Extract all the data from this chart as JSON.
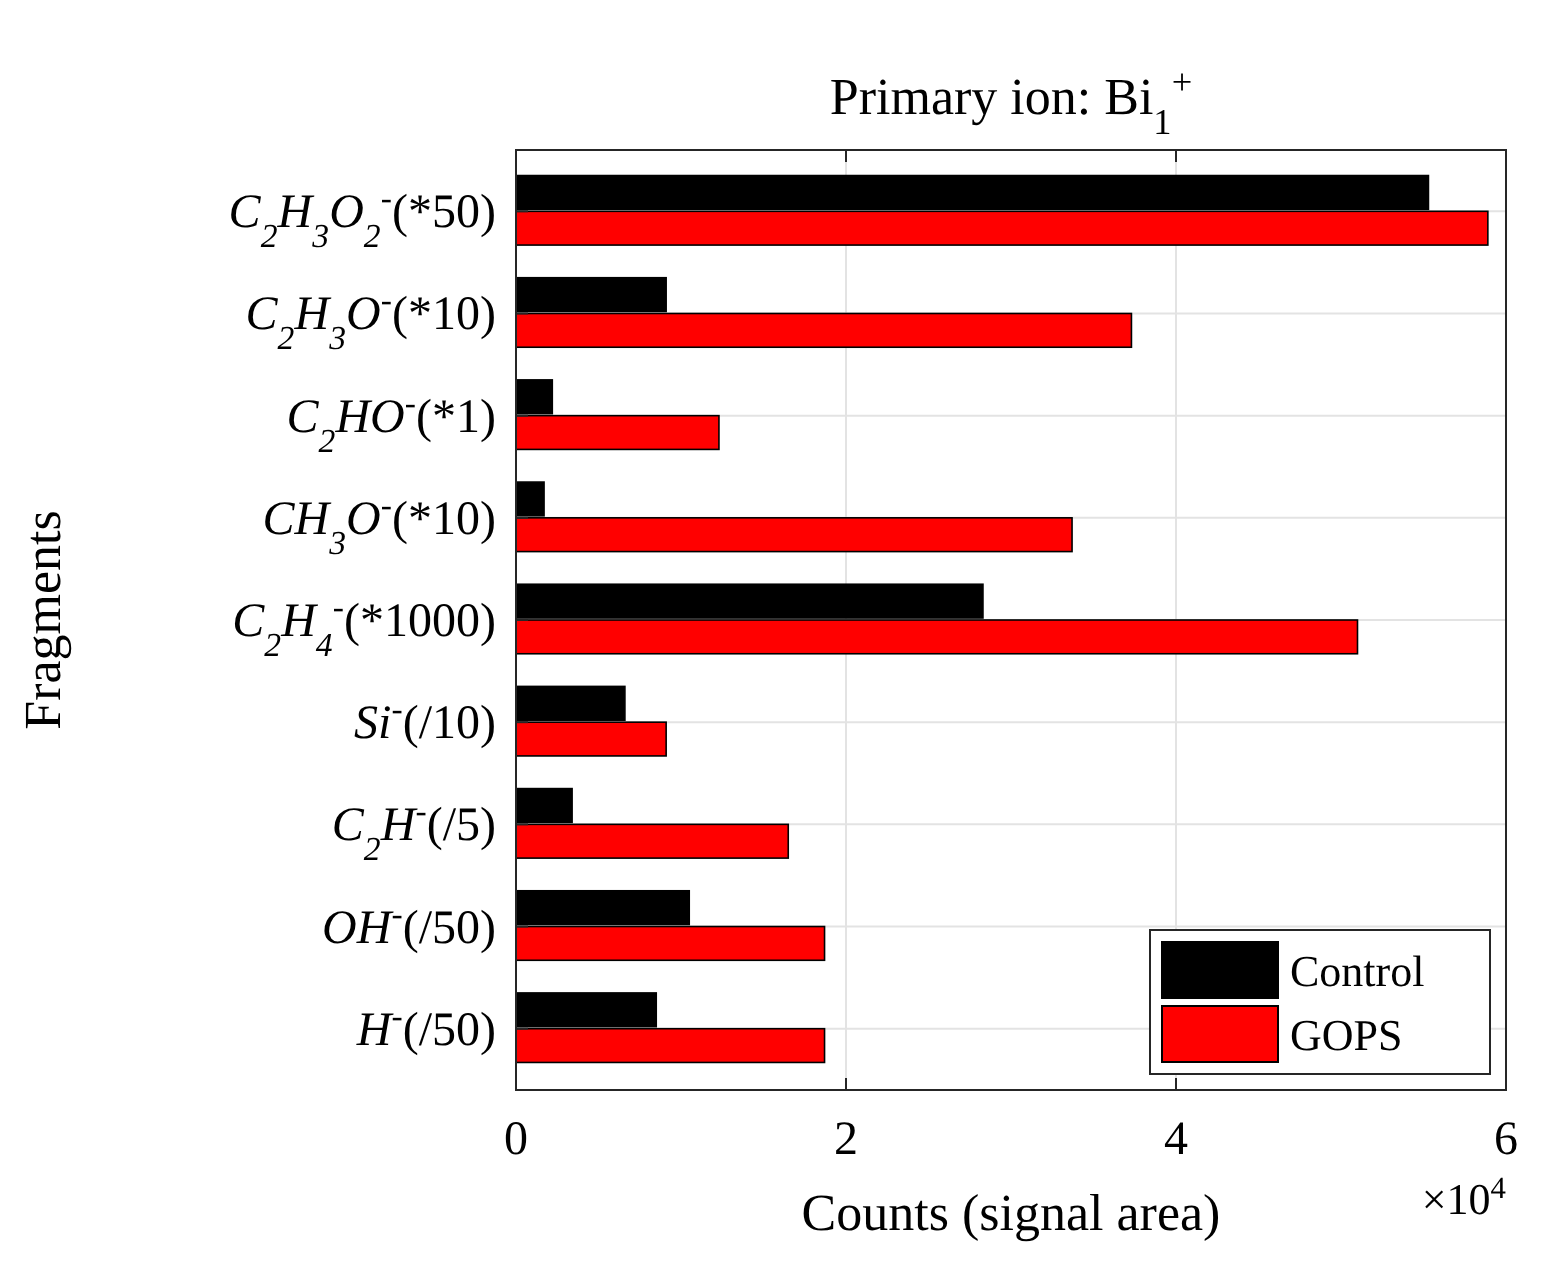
{
  "chart_data": {
    "type": "bar",
    "orientation": "horizontal",
    "title": "Primary ion: Bi$_{1}$$^{+}$",
    "xlabel": "Counts (signal area)",
    "ylabel": "Fragments",
    "categories": [
      "C$_{2}$H$_{3}$O$_{2}$$^{-}$(*50)",
      "C$_{2}$H$_{3}$O$^{-}$(*10)",
      "C$_{2}$HO$^{-}$(*1)",
      "CH$_{3}$O$^{-}$(*10)",
      "C$_{2}$H$_{4}$$^{-}$(*1000)",
      "Si$^{-}$(/10)",
      "C$_{2}$H$^{-}$(/5)",
      "OH$^{-}$(/50)",
      "H$^{-}$(/50)"
    ],
    "series": [
      {
        "name": "Control",
        "color": "#000000",
        "values": [
          5.53,
          0.91,
          0.22,
          0.17,
          2.83,
          0.66,
          0.34,
          1.05,
          0.85
        ]
      },
      {
        "name": "GOPS",
        "color": "#ff0000",
        "values": [
          5.89,
          3.73,
          1.23,
          3.37,
          5.1,
          0.91,
          1.65,
          1.87,
          1.87
        ]
      }
    ],
    "xlim": [
      0,
      6
    ],
    "xticks": [
      0,
      2,
      4,
      6
    ],
    "grid": true,
    "legend": "bottom right",
    "annotations": [
      "×10$^{4}$"
    ]
  }
}
